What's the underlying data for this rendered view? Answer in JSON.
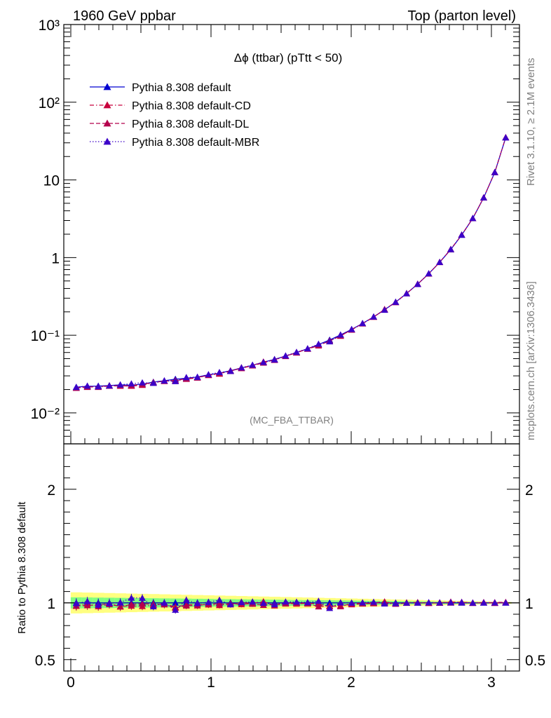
{
  "header": {
    "left": "1960 GeV ppbar",
    "right": "Top (parton level)"
  },
  "side_labels": {
    "rivet": "Rivet 3.1.10, ≥ 2.1M events",
    "mcplots": "mcplots.cern.ch [arXiv:1306.3436]"
  },
  "analysis_tag": "(MC_FBA_TTBAR)",
  "chart_data": [
    {
      "type": "line",
      "title": "Δϕ (ttbar) (pTtt < 50)",
      "yscale": "log",
      "ylim": [
        0.004,
        1000
      ],
      "xlim": [
        -0.05,
        3.2
      ],
      "ytick_labels": [
        "10⁻²",
        "10⁻¹",
        "1",
        "10",
        "10²",
        "10³"
      ],
      "legend_position": "top-left",
      "x": [
        0.039,
        0.118,
        0.196,
        0.275,
        0.353,
        0.432,
        0.51,
        0.589,
        0.667,
        0.746,
        0.824,
        0.903,
        0.982,
        1.06,
        1.139,
        1.217,
        1.296,
        1.374,
        1.453,
        1.532,
        1.61,
        1.689,
        1.767,
        1.846,
        1.924,
        2.003,
        2.081,
        2.16,
        2.238,
        2.317,
        2.395,
        2.474,
        2.553,
        2.631,
        2.71,
        2.788,
        2.867,
        2.945,
        3.024,
        3.102
      ],
      "series": [
        {
          "name": "Pythia 8.308 default",
          "color": "#0000d0",
          "style": "solid",
          "values": [
            0.0215,
            0.022,
            0.0222,
            0.0225,
            0.023,
            0.0228,
            0.0235,
            0.025,
            0.026,
            0.0272,
            0.028,
            0.029,
            0.031,
            0.0325,
            0.035,
            0.038,
            0.041,
            0.045,
            0.049,
            0.054,
            0.06,
            0.067,
            0.076,
            0.087,
            0.101,
            0.119,
            0.142,
            0.172,
            0.213,
            0.268,
            0.345,
            0.455,
            0.62,
            0.87,
            1.27,
            1.95,
            3.2,
            5.9,
            12.5,
            35
          ]
        },
        {
          "name": "Pythia 8.308 default-CD",
          "color": "#c8003c",
          "style": "dashdot",
          "values": [
            0.021,
            0.0218,
            0.0215,
            0.0222,
            0.0223,
            0.0222,
            0.0228,
            0.0245,
            0.0258,
            0.0262,
            0.0275,
            0.0286,
            0.0305,
            0.0318,
            0.0348,
            0.0375,
            0.0408,
            0.0455,
            0.0478,
            0.0538,
            0.0595,
            0.0668,
            0.0752,
            0.0842,
            0.0985,
            0.1173,
            0.1409,
            0.1711,
            0.2148,
            0.2659,
            0.3457,
            0.4568,
            0.6187,
            0.8691,
            1.2809,
            1.9582,
            3.2017,
            5.9147,
            12.5391,
            35.2
          ]
        },
        {
          "name": "Pythia 8.308 default-DL",
          "color": "#b4004c",
          "style": "dashed",
          "values": [
            0.0209,
            0.0215,
            0.0218,
            0.0224,
            0.0222,
            0.0225,
            0.0233,
            0.0247,
            0.0256,
            0.026,
            0.0273,
            0.0283,
            0.0307,
            0.0322,
            0.0345,
            0.0383,
            0.0406,
            0.0441,
            0.0484,
            0.0536,
            0.0602,
            0.0665,
            0.0735,
            0.0847,
            0.0978,
            0.1183,
            0.1414,
            0.172,
            0.2151,
            0.2653,
            0.3445,
            0.4559,
            0.6183,
            0.8722,
            1.2727,
            1.9623,
            3.1912,
            5.9241,
            12.4651,
            35.1
          ]
        },
        {
          "name": "Pythia 8.308 default-MBR",
          "color": "#3c00c8",
          "style": "dotted",
          "values": [
            0.0214,
            0.0223,
            0.0218,
            0.0224,
            0.0231,
            0.0238,
            0.0245,
            0.0242,
            0.026,
            0.0255,
            0.0287,
            0.0289,
            0.0312,
            0.0333,
            0.0345,
            0.0382,
            0.0414,
            0.0449,
            0.0483,
            0.0545,
            0.0605,
            0.0673,
            0.0772,
            0.0829,
            0.1013,
            0.1189,
            0.1424,
            0.1732,
            0.2115,
            0.2667,
            0.3448,
            0.4552,
            0.6221,
            0.8712,
            1.2752,
            1.9594,
            3.1987,
            5.9085,
            12.5152,
            35.05
          ]
        }
      ]
    },
    {
      "type": "line",
      "ylabel": "Ratio to Pythia 8.308 default",
      "ylim": [
        0.4,
        2.4
      ],
      "ytick_labels": [
        "0.5",
        "1",
        "2"
      ],
      "xtick_labels": [
        "0",
        "1",
        "2",
        "3"
      ],
      "band_color_outer": "#ffff80",
      "band_color_inner": "#80ff80"
    }
  ]
}
